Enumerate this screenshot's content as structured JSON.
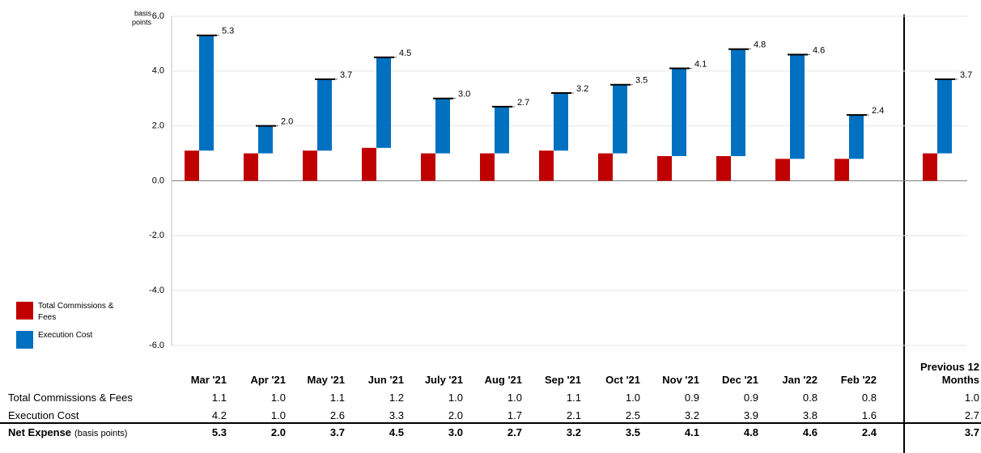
{
  "chart_data": {
    "type": "bar",
    "y_label": [
      "basis",
      "points"
    ],
    "categories": [
      "Mar '21",
      "Apr '21",
      "May '21",
      "Jun '21",
      "July '21",
      "Aug '21",
      "Sep '21",
      "Oct '21",
      "Nov '21",
      "Dec '21",
      "Jan '22",
      "Feb '22",
      "Previous 12 Months"
    ],
    "series": [
      {
        "name": "Total Commissions & Fees",
        "color": "#c00000",
        "values": [
          1.1,
          1.0,
          1.1,
          1.2,
          1.0,
          1.0,
          1.1,
          1.0,
          0.9,
          0.9,
          0.8,
          0.8,
          1.0
        ],
        "value_labels": [
          "1.1",
          "1.0",
          "1.1",
          "1.2",
          "1.0",
          "1.0",
          "1.1",
          "1.0",
          "0.9",
          "0.9",
          "0.8",
          "0.8",
          "1.0"
        ]
      },
      {
        "name": "Execution Cost",
        "color": "#0070c0",
        "values": [
          4.2,
          1.0,
          2.6,
          3.3,
          2.0,
          1.7,
          2.1,
          2.5,
          3.2,
          3.9,
          3.8,
          1.6,
          2.7
        ],
        "value_labels": [
          "4.2",
          "1.0",
          "2.6",
          "3.3",
          "2.0",
          "1.7",
          "2.1",
          "2.5",
          "3.2",
          "3.9",
          "3.8",
          "1.6",
          "2.7"
        ]
      },
      {
        "name": "Net Expense",
        "unit": "(basis points)",
        "color": "#000000",
        "values": [
          5.3,
          2.0,
          3.7,
          4.5,
          3.0,
          2.7,
          3.2,
          3.5,
          4.1,
          4.8,
          4.6,
          2.4,
          3.7
        ],
        "value_labels": [
          "5.3",
          "2.0",
          "3.7",
          "4.5",
          "3.0",
          "2.7",
          "3.2",
          "3.5",
          "4.1",
          "4.8",
          "4.6",
          "2.4",
          "3.7"
        ]
      }
    ],
    "ylim": [
      -6,
      6
    ],
    "yticks": [
      {
        "value": -6,
        "label": "-6.0"
      },
      {
        "value": -4,
        "label": "-4.0"
      },
      {
        "value": -2,
        "label": "-2.0"
      },
      {
        "value": 0,
        "label": "0.0"
      },
      {
        "value": 2,
        "label": "2.0"
      },
      {
        "value": 4,
        "label": "4.0"
      },
      {
        "value": 6,
        "label": "6.0"
      }
    ],
    "grid": true
  }
}
